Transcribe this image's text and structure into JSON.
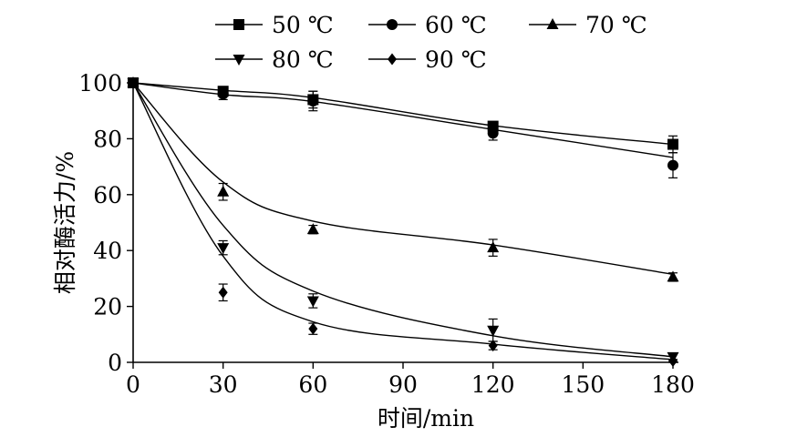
{
  "chart_data": {
    "type": "scatter",
    "xlabel": "时间/min",
    "ylabel": "相对酶活力/%",
    "xlim": [
      0,
      180
    ],
    "ylim": [
      0,
      100
    ],
    "xticks": [
      "0",
      "30",
      "60",
      "90",
      "120",
      "150",
      "180"
    ],
    "yticks": [
      "0",
      "20",
      "40",
      "60",
      "80",
      "100"
    ],
    "legend_position": "top",
    "series": [
      {
        "name": "50 ℃",
        "marker": "square",
        "x": [
          0,
          30,
          60,
          120,
          180
        ],
        "values": [
          100,
          97,
          94,
          84.5,
          78
        ],
        "errors": [
          0,
          1,
          3,
          1.5,
          3
        ],
        "fit": [
          100,
          97.3,
          94.7,
          84.7,
          78
        ]
      },
      {
        "name": "60 ℃",
        "marker": "circle",
        "x": [
          0,
          30,
          60,
          120,
          180
        ],
        "values": [
          100,
          96,
          93.5,
          82,
          70.5
        ],
        "errors": [
          0,
          2,
          3.5,
          2.5,
          4.5
        ],
        "fit": [
          100,
          95.8,
          93.3,
          83.3,
          73.3
        ]
      },
      {
        "name": "70 ℃",
        "marker": "triangle-up",
        "x": [
          0,
          30,
          60,
          120,
          180
        ],
        "values": [
          100,
          61,
          47.5,
          41,
          30.5
        ],
        "errors": [
          0,
          3,
          1.5,
          3,
          1.5
        ],
        "fit": [
          100,
          64.5,
          50.5,
          42,
          31.5
        ]
      },
      {
        "name": "80 ℃",
        "marker": "triangle-down",
        "x": [
          0,
          30,
          60,
          120,
          180
        ],
        "values": [
          100,
          41,
          22,
          11.5,
          2
        ],
        "errors": [
          0,
          2.5,
          2.5,
          4,
          1
        ],
        "fit": [
          100,
          49,
          25.5,
          9.5,
          2
        ]
      },
      {
        "name": "90 ℃",
        "marker": "diamond",
        "x": [
          0,
          30,
          60,
          120,
          180
        ],
        "values": [
          100,
          25,
          12,
          6,
          0.5
        ],
        "errors": [
          0,
          3,
          2,
          1.5,
          0.5
        ],
        "fit": [
          100,
          38,
          14.5,
          6.5,
          1
        ]
      }
    ]
  }
}
